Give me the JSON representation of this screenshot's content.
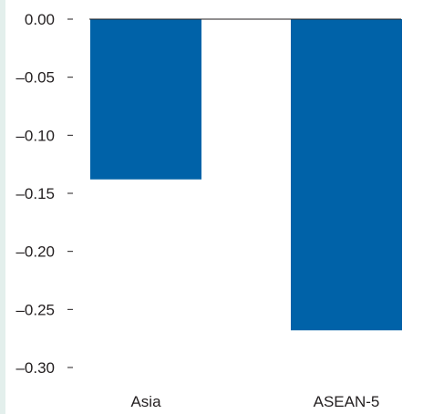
{
  "chart_data": {
    "type": "bar",
    "categories": [
      "Asia",
      "ASEAN-5"
    ],
    "values": [
      -0.138,
      -0.268
    ],
    "title": "",
    "xlabel": "",
    "ylabel": "",
    "ylim": [
      -0.3,
      0.0
    ],
    "yticks": [
      0.0,
      -0.05,
      -0.1,
      -0.15,
      -0.2,
      -0.25,
      -0.3
    ],
    "ytick_labels": [
      "0.00",
      "–0.05",
      "–0.10",
      "–0.15",
      "–0.20",
      "–0.25",
      "–0.30"
    ],
    "grid": false,
    "legend": "none",
    "colors": {
      "bar": "#0062a8",
      "axis": "#231f20",
      "text": "#231f20",
      "left_strip": "#e3efec"
    }
  }
}
